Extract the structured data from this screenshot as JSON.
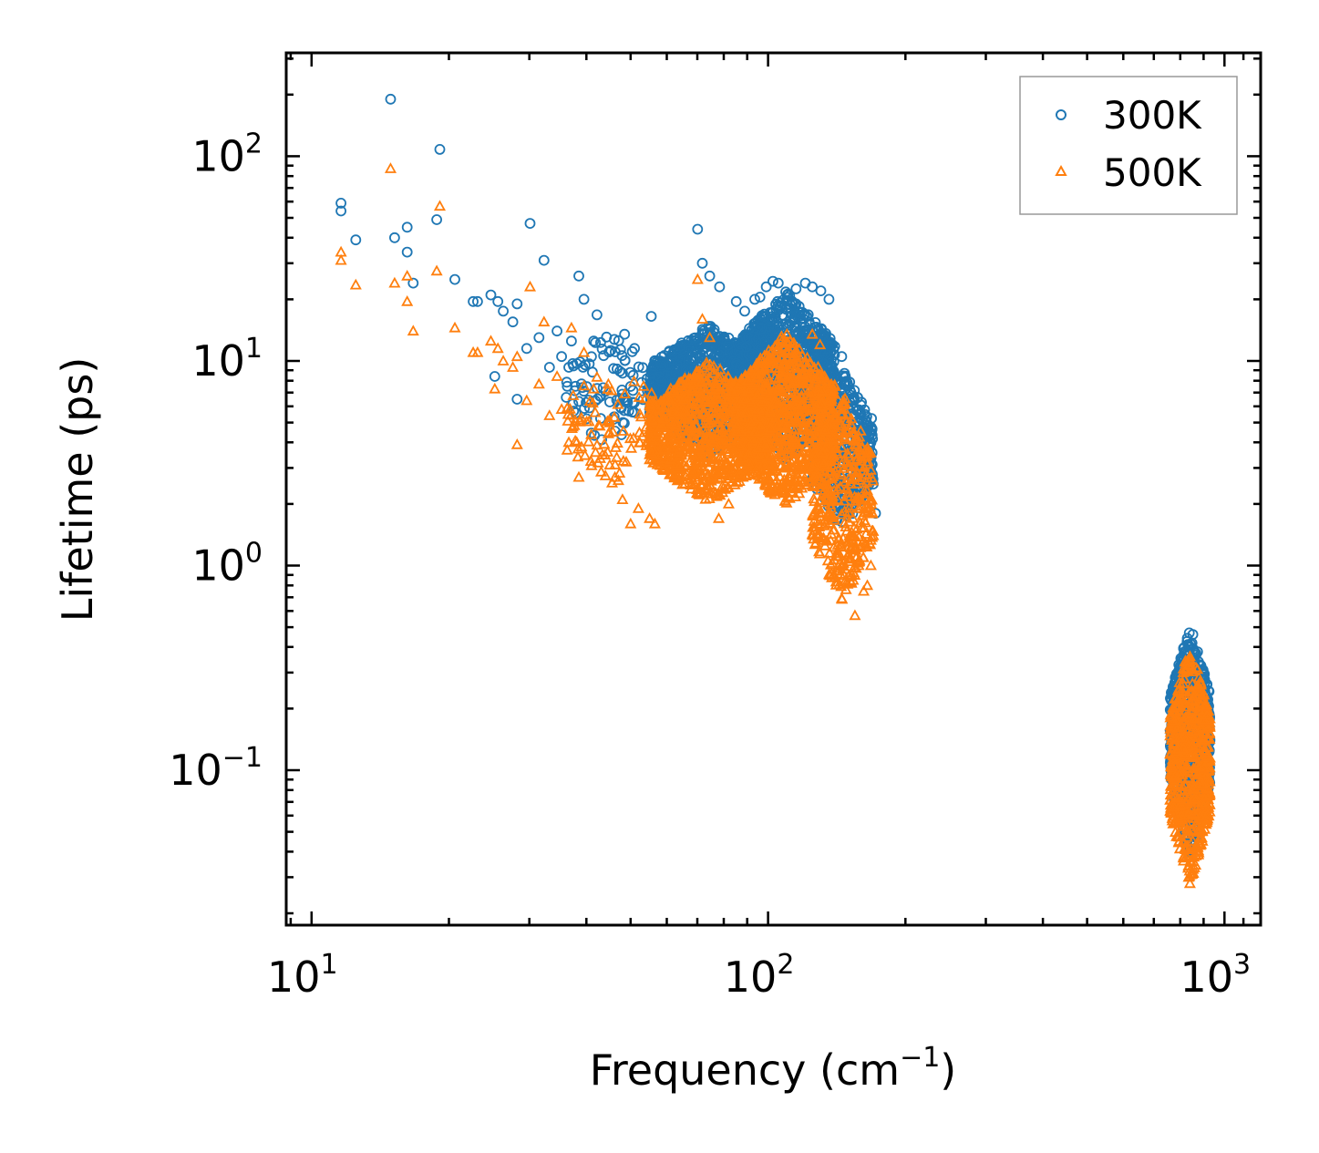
{
  "chart_data": {
    "type": "scatter",
    "title": "",
    "xscale": "log",
    "yscale": "log",
    "xlim": [
      8.8,
      1200
    ],
    "ylim": [
      0.0175,
      320
    ],
    "xlabel": {
      "text": "Frequency (cm",
      "sup": "−1",
      "suffix": ")"
    },
    "ylabel": "Lifetime (ps)",
    "x_ticks": [
      {
        "value": 10,
        "base": "10",
        "exp": "1"
      },
      {
        "value": 100,
        "base": "10",
        "exp": "2"
      },
      {
        "value": 1000,
        "base": "10",
        "exp": "3"
      }
    ],
    "y_ticks": [
      {
        "value": 0.1,
        "base": "10",
        "exp": "−1"
      },
      {
        "value": 1,
        "base": "10",
        "exp": "0"
      },
      {
        "value": 10,
        "base": "10",
        "exp": "1"
      },
      {
        "value": 100,
        "base": "10",
        "exp": "2"
      }
    ],
    "legend": {
      "position": "top-right"
    },
    "series": [
      {
        "name": "300K",
        "marker": "circle",
        "color": "#1f77b4",
        "points": [
          [
            11.6,
            59
          ],
          [
            11.6,
            54
          ],
          [
            12.5,
            39
          ],
          [
            14.9,
            190
          ],
          [
            15.2,
            40
          ],
          [
            16.2,
            45
          ],
          [
            16.2,
            34
          ],
          [
            16.7,
            24
          ],
          [
            18.8,
            49
          ],
          [
            19.1,
            108
          ],
          [
            20.6,
            25
          ],
          [
            22.6,
            19.5
          ],
          [
            23.1,
            19.5
          ],
          [
            24.7,
            21
          ],
          [
            25.6,
            19.5
          ],
          [
            26.3,
            17.5
          ],
          [
            25.2,
            8.4
          ],
          [
            27.6,
            15.5
          ],
          [
            28.2,
            19
          ],
          [
            28.2,
            6.5
          ],
          [
            29.6,
            11.5
          ],
          [
            30.1,
            47
          ],
          [
            31.5,
            13
          ],
          [
            32.3,
            31
          ],
          [
            33.2,
            9.3
          ],
          [
            34.5,
            14
          ],
          [
            35.3,
            10.5
          ],
          [
            36.6,
            9.3
          ],
          [
            37.1,
            12.5
          ],
          [
            38.5,
            26
          ],
          [
            39.5,
            20
          ],
          [
            41.5,
            12.5
          ],
          [
            42.2,
            16.8
          ],
          [
            48.5,
            13.5
          ],
          [
            51.0,
            11.5
          ],
          [
            55.5,
            16.5
          ],
          [
            70.1,
            44
          ],
          [
            71.8,
            30
          ],
          [
            74.5,
            26
          ],
          [
            78.3,
            23
          ],
          [
            85.2,
            19.5
          ],
          [
            88.9,
            17.5
          ],
          [
            93.5,
            20
          ],
          [
            96.0,
            20.5
          ],
          [
            99.1,
            23
          ],
          [
            102.5,
            24.5
          ],
          [
            105.3,
            24
          ],
          [
            110.2,
            21
          ],
          [
            115.2,
            22.5
          ],
          [
            120.7,
            24
          ],
          [
            125.0,
            23
          ],
          [
            130.5,
            22
          ],
          [
            136.0,
            20
          ],
          [
            145.0,
            10.5
          ],
          [
            152.0,
            7.0
          ],
          [
            158.5,
            4.6
          ],
          [
            165.0,
            3.2
          ],
          [
            170.0,
            2.5
          ],
          [
            172.0,
            1.8
          ],
          [
            101.5,
            3.1
          ],
          [
            88.0,
            3.7
          ],
          [
            62.0,
            7.8
          ],
          [
            75.0,
            8.0
          ],
          [
            45.0,
            6.3
          ],
          [
            50.0,
            7.5
          ],
          [
            58.0,
            10.0
          ],
          [
            66.0,
            9.0
          ],
          [
            82.0,
            12.0
          ]
        ],
        "regions": [
          {
            "freq": [
              36,
              55
            ],
            "lifetime": [
              3.8,
              14
            ],
            "count": 90
          },
          {
            "freq": [
              55,
              100
            ],
            "lifetime": [
              3.5,
              15
            ],
            "count": 1200
          },
          {
            "freq": [
              85,
              140
            ],
            "lifetime": [
              3.2,
              22
            ],
            "count": 1100
          },
          {
            "freq": [
              125,
              170
            ],
            "lifetime": [
              1.5,
              9
            ],
            "count": 400
          },
          {
            "freq": [
              760,
              930
            ],
            "lifetime": [
              0.038,
              0.52
            ],
            "count": 700
          }
        ]
      },
      {
        "name": "500K",
        "marker": "triangle",
        "color": "#ff7f0e",
        "points": [
          [
            11.6,
            34
          ],
          [
            11.6,
            31
          ],
          [
            12.5,
            23.5
          ],
          [
            14.9,
            87
          ],
          [
            15.2,
            24
          ],
          [
            16.2,
            26
          ],
          [
            16.2,
            19.5
          ],
          [
            16.7,
            14
          ],
          [
            18.8,
            27.5
          ],
          [
            19.1,
            57
          ],
          [
            20.6,
            14.5
          ],
          [
            22.6,
            11
          ],
          [
            23.1,
            11
          ],
          [
            24.7,
            12.5
          ],
          [
            25.6,
            11.5
          ],
          [
            26.3,
            10
          ],
          [
            25.2,
            7.3
          ],
          [
            27.6,
            9.3
          ],
          [
            28.2,
            10.5
          ],
          [
            28.2,
            3.9
          ],
          [
            29.6,
            6.4
          ],
          [
            30.1,
            23
          ],
          [
            31.5,
            7.7
          ],
          [
            32.3,
            15.5
          ],
          [
            33.2,
            5.4
          ],
          [
            34.5,
            8.4
          ],
          [
            35.3,
            5.8
          ],
          [
            36.6,
            4.0
          ],
          [
            37.1,
            14.5
          ],
          [
            38.5,
            2.7
          ],
          [
            39.5,
            11
          ],
          [
            41.5,
            7.3
          ],
          [
            45.0,
            3.1
          ],
          [
            48.0,
            2.1
          ],
          [
            50.0,
            1.6
          ],
          [
            52.0,
            1.9
          ],
          [
            55.0,
            1.7
          ],
          [
            56.5,
            1.6
          ],
          [
            70.1,
            25
          ],
          [
            71.8,
            16
          ],
          [
            74.5,
            13
          ],
          [
            78.0,
            1.7
          ],
          [
            82.0,
            2.0
          ],
          [
            97.0,
            2.7
          ],
          [
            99.0,
            2.9
          ],
          [
            101.5,
            10
          ],
          [
            110.0,
            13.5
          ],
          [
            125.0,
            13.5
          ],
          [
            130.0,
            12
          ],
          [
            140.0,
            7.5
          ],
          [
            145.0,
            5.5
          ],
          [
            152.0,
            2.5
          ],
          [
            155.0,
            0.57
          ],
          [
            158.0,
            1.0
          ],
          [
            162.0,
            0.75
          ],
          [
            165.0,
            0.8
          ],
          [
            168.0,
            1.0
          ],
          [
            170.0,
            1.4
          ]
        ],
        "regions": [
          {
            "freq": [
              36,
              58
            ],
            "lifetime": [
              2.4,
              10
            ],
            "count": 100
          },
          {
            "freq": [
              55,
              100
            ],
            "lifetime": [
              2.0,
              10
            ],
            "count": 1000
          },
          {
            "freq": [
              85,
              140
            ],
            "lifetime": [
              1.9,
              14
            ],
            "count": 1000
          },
          {
            "freq": [
              125,
              170
            ],
            "lifetime": [
              0.65,
              7
            ],
            "count": 400
          },
          {
            "freq": [
              760,
              930
            ],
            "lifetime": [
              0.027,
              0.42
            ],
            "count": 650
          }
        ]
      }
    ]
  }
}
